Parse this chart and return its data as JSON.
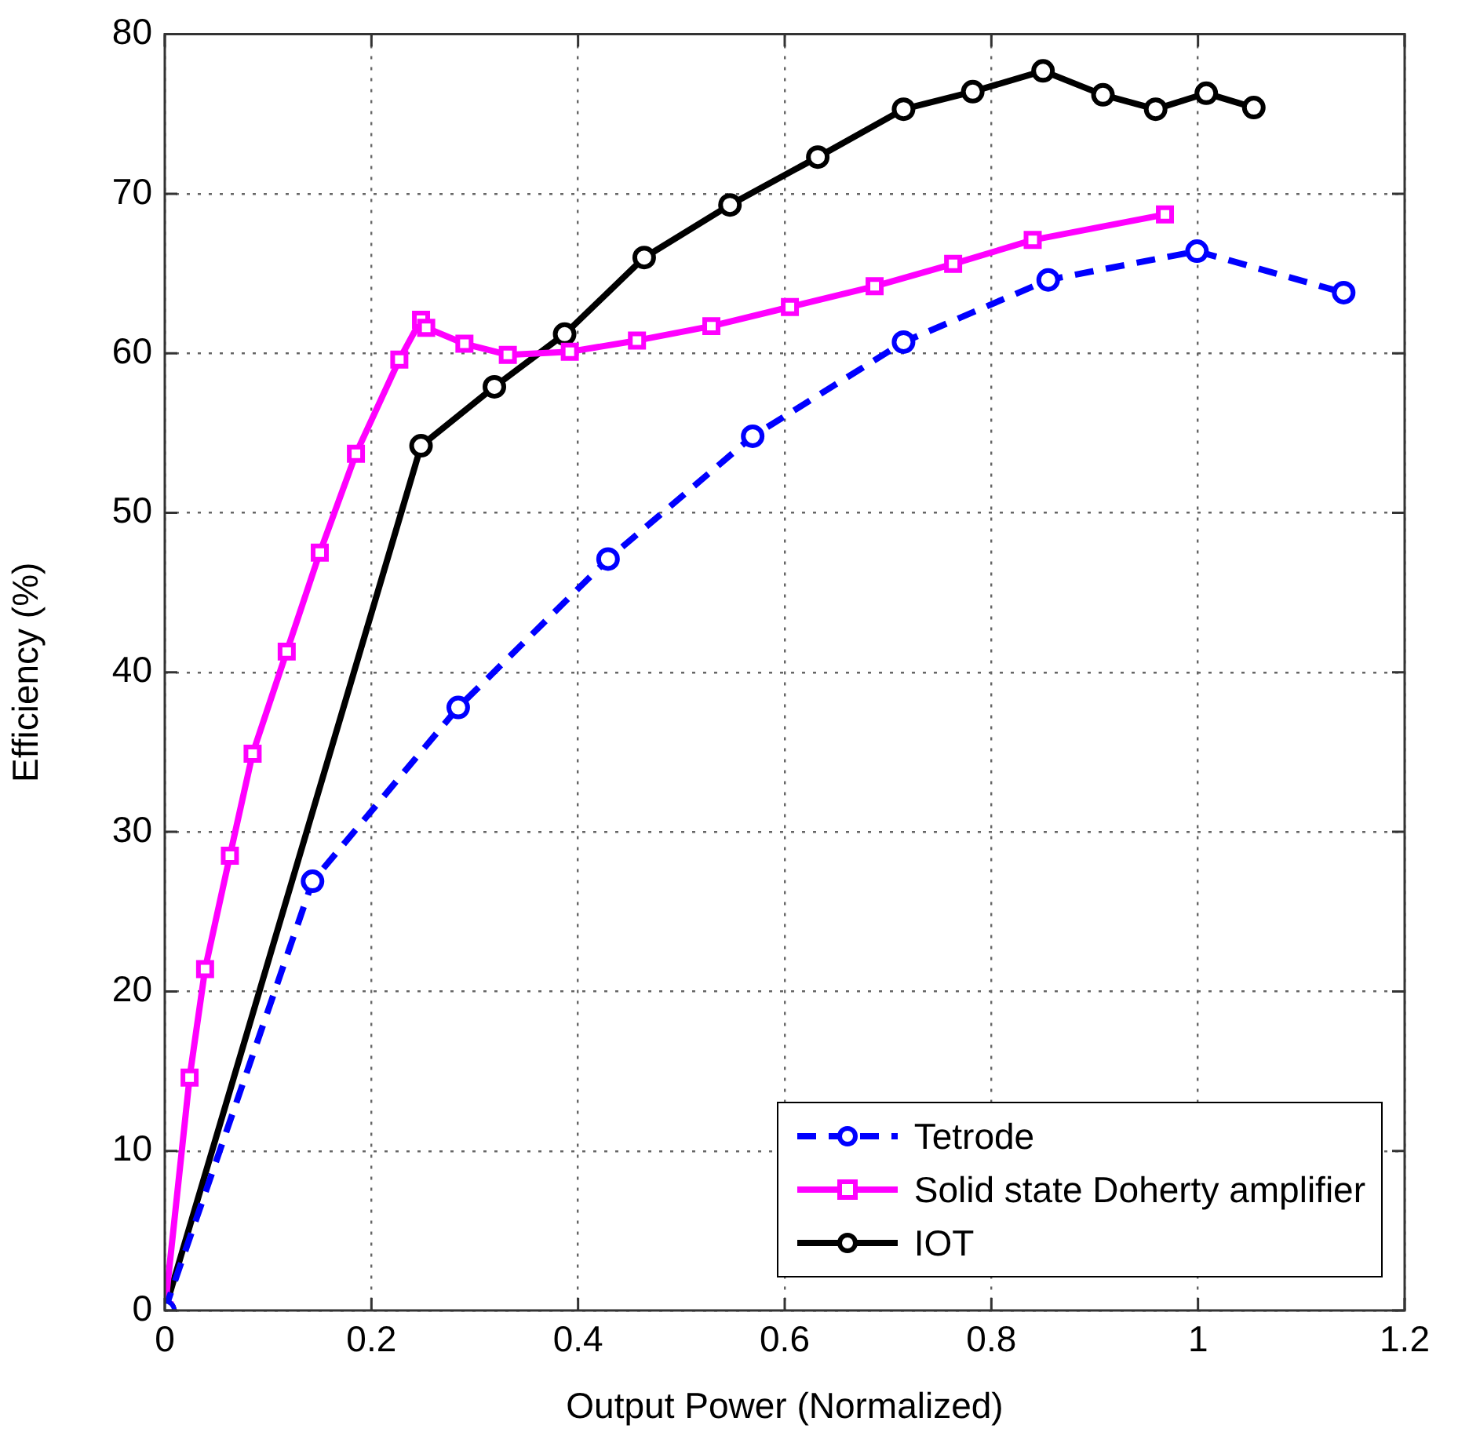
{
  "chart_data": {
    "type": "line",
    "xlabel": "Output Power (Normalized)",
    "ylabel": "Efficiency (%)",
    "xlim": [
      0,
      1.2
    ],
    "xticks": [
      0,
      0.2,
      0.4,
      0.6,
      0.8,
      1,
      1.2
    ],
    "ylim": [
      0,
      80
    ],
    "yticks": [
      0,
      10,
      20,
      30,
      40,
      50,
      60,
      70,
      80
    ],
    "grid": true,
    "legend": "bottom right",
    "series": [
      {
        "name": "Tetrode",
        "color": "#0000ff",
        "marker": "circle",
        "line_style": "dashed",
        "x": [
          0,
          0.143,
          0.284,
          0.429,
          0.569,
          0.715,
          0.855,
          0.999,
          1.141
        ],
        "values": [
          0,
          26.9,
          37.8,
          47.1,
          54.8,
          60.7,
          64.6,
          66.4,
          63.8
        ]
      },
      {
        "name": "Solid state Doherty amplifier",
        "color": "#ff00ff",
        "marker": "square",
        "line_style": "solid",
        "x": [
          0,
          0.024,
          0.039,
          0.063,
          0.085,
          0.118,
          0.15,
          0.185,
          0.227,
          0.248,
          0.253,
          0.29,
          0.332,
          0.392,
          0.457,
          0.529,
          0.605,
          0.687,
          0.763,
          0.84,
          0.968
        ],
        "values": [
          0,
          14.6,
          21.4,
          28.5,
          34.9,
          41.3,
          47.5,
          53.7,
          59.6,
          62.1,
          61.6,
          60.6,
          59.9,
          60.1,
          60.8,
          61.7,
          62.9,
          64.2,
          65.6,
          67.1,
          68.7
        ]
      },
      {
        "name": "IOT",
        "color": "#000000",
        "marker": "circle",
        "line_style": "solid",
        "x": [
          0,
          0.248,
          0.319,
          0.387,
          0.464,
          0.547,
          0.632,
          0.715,
          0.782,
          0.85,
          0.908,
          0.959,
          1.008,
          1.054
        ],
        "values": [
          0,
          54.2,
          57.9,
          61.2,
          66.0,
          69.3,
          72.3,
          75.3,
          76.4,
          77.7,
          76.2,
          75.3,
          76.3,
          75.4
        ]
      }
    ]
  }
}
